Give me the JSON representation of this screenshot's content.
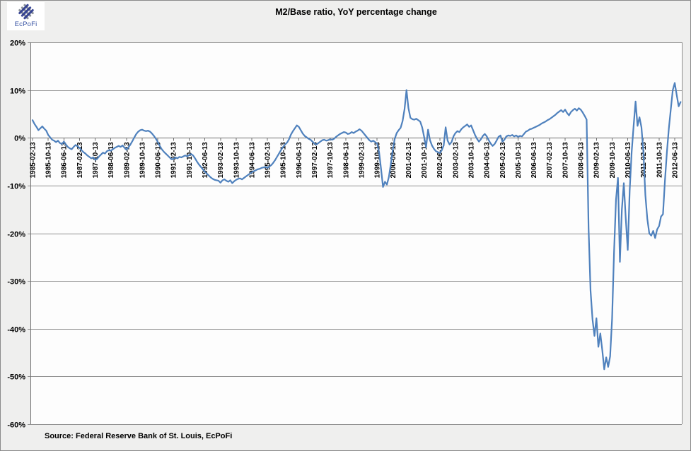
{
  "header": {
    "title": "M2/Base ratio, YoY percentage change"
  },
  "logo": {
    "text": "EcPoFi"
  },
  "footer": {
    "source": "Source: Federal Reserve Bank of St. Louis, EcPoFi"
  },
  "colors": {
    "line": "#4f81bd",
    "gridline": "#8e8e8e",
    "axis": "#6f6f6f",
    "background": "#efefee",
    "plot_background": "#fdfdfd",
    "text": "#000000",
    "logo_blue": "#2c3b8e",
    "logo_gray": "#8f959c"
  },
  "chart_data": {
    "type": "line",
    "title": "M2/Base ratio, YoY percentage change",
    "xlabel": "",
    "ylabel": "",
    "ylim": [
      -60,
      20
    ],
    "y_tick_step": 10,
    "y_tick_labels": [
      "20%",
      "10%",
      "0%",
      "-10%",
      "-20%",
      "-30%",
      "-40%",
      "-50%",
      "-60%"
    ],
    "grid": "horizontal",
    "legend": "none",
    "x_start_month": "1985-02",
    "x_end_month": "2012-09",
    "x_tick_every_months": 8,
    "x_tick_labels": [
      "1985-02-13",
      "1985-10-13",
      "1986-06-13",
      "1987-02-13",
      "1987-10-13",
      "1988-06-13",
      "1989-02-13",
      "1989-10-13",
      "1990-06-13",
      "1991-02-13",
      "1991-10-13",
      "1992-06-13",
      "1993-02-13",
      "1993-10-13",
      "1994-06-13",
      "1995-02-13",
      "1995-10-13",
      "1996-06-13",
      "1997-02-13",
      "1997-10-13",
      "1998-06-13",
      "1999-02-13",
      "1999-10-13",
      "2000-06-13",
      "2001-02-13",
      "2001-10-13",
      "2002-06-13",
      "2003-02-13",
      "2003-10-13",
      "2004-06-13",
      "2005-02-13",
      "2005-10-13",
      "2006-06-13",
      "2007-02-13",
      "2007-10-13",
      "2008-06-13",
      "2009-02-13",
      "2009-10-13",
      "2010-06-13",
      "2011-02-13",
      "2011-10-13",
      "2012-06-13"
    ],
    "series": [
      {
        "name": "M2/Base ratio, YoY percentage change",
        "values": [
          3.7,
          2.9,
          2.3,
          1.6,
          2.0,
          2.4,
          1.9,
          1.5,
          0.6,
          0.1,
          -0.4,
          -0.6,
          -0.9,
          -0.6,
          -1.1,
          -1.3,
          -0.8,
          -1.4,
          -1.9,
          -2.2,
          -2.4,
          -1.9,
          -1.5,
          -1.8,
          -2.1,
          -2.6,
          -3.0,
          -3.3,
          -3.7,
          -4.0,
          -4.3,
          -4.1,
          -4.6,
          -4.4,
          -3.9,
          -3.5,
          -3.1,
          -3.3,
          -2.8,
          -2.6,
          -2.7,
          -2.4,
          -2.1,
          -1.9,
          -1.7,
          -1.9,
          -1.6,
          -2.1,
          -2.5,
          -2.0,
          -1.4,
          -0.7,
          0.1,
          0.8,
          1.3,
          1.6,
          1.7,
          1.5,
          1.4,
          1.5,
          1.3,
          0.9,
          0.4,
          -0.2,
          -0.9,
          -1.7,
          -2.4,
          -2.9,
          -3.3,
          -3.7,
          -4.1,
          -4.5,
          -4.4,
          -4.1,
          -4.3,
          -4.0,
          -4.1,
          -3.9,
          -3.7,
          -3.9,
          -3.6,
          -3.4,
          -3.7,
          -4.3,
          -5.0,
          -5.6,
          -6.1,
          -6.6,
          -7.1,
          -7.5,
          -7.9,
          -8.3,
          -8.6,
          -8.8,
          -8.9,
          -9.0,
          -9.4,
          -8.9,
          -8.7,
          -9.0,
          -9.2,
          -8.9,
          -9.5,
          -9.1,
          -8.8,
          -8.6,
          -8.5,
          -8.7,
          -8.4,
          -8.1,
          -7.8,
          -7.5,
          -7.2,
          -7.0,
          -6.8,
          -6.6,
          -6.5,
          -6.3,
          -6.2,
          -6.1,
          -6.3,
          -6.0,
          -5.7,
          -5.2,
          -4.6,
          -3.9,
          -3.2,
          -2.5,
          -1.9,
          -1.4,
          -1.0,
          -0.3,
          0.7,
          1.4,
          2.0,
          2.6,
          2.3,
          1.6,
          0.9,
          0.4,
          0.1,
          -0.2,
          -0.4,
          -0.8,
          -1.2,
          -1.4,
          -1.1,
          -0.8,
          -0.5,
          -0.4,
          -0.6,
          -0.5,
          -0.3,
          -0.4,
          -0.2,
          0.2,
          0.5,
          0.8,
          1.0,
          1.2,
          1.1,
          0.8,
          0.9,
          1.2,
          1.0,
          1.3,
          1.5,
          1.8,
          1.5,
          1.0,
          0.5,
          0.0,
          -0.5,
          -0.8,
          -0.6,
          -0.9,
          -1.2,
          -3.0,
          -6.5,
          -10.3,
          -9.2,
          -9.8,
          -8.2,
          -5.5,
          -2.5,
          -0.2,
          1.0,
          1.6,
          2.1,
          3.5,
          6.0,
          10.0,
          6.2,
          4.2,
          3.9,
          3.8,
          4.0,
          3.7,
          3.4,
          2.2,
          0.2,
          -2.0,
          1.7,
          -0.5,
          -1.6,
          -2.3,
          -2.8,
          -3.0,
          -3.2,
          -2.6,
          -1.6,
          2.2,
          -0.6,
          -1.4,
          -0.9,
          0.3,
          1.0,
          1.4,
          1.2,
          1.8,
          2.2,
          2.5,
          2.8,
          2.3,
          2.6,
          1.6,
          0.6,
          -0.2,
          -0.8,
          -0.3,
          0.4,
          0.8,
          0.3,
          -0.5,
          -1.2,
          -1.7,
          -1.3,
          -0.6,
          0.2,
          0.5,
          -0.8,
          -0.4,
          0.3,
          0.5,
          0.4,
          0.6,
          0.3,
          0.5,
          0.2,
          0.4,
          0.3,
          0.8,
          1.3,
          1.5,
          1.8,
          1.9,
          2.1,
          2.3,
          2.5,
          2.7,
          3.0,
          3.2,
          3.4,
          3.7,
          3.9,
          4.2,
          4.5,
          4.8,
          5.2,
          5.5,
          5.8,
          5.4,
          5.9,
          5.2,
          4.7,
          5.4,
          5.8,
          6.1,
          5.7,
          6.2,
          5.9,
          5.3,
          4.6,
          3.8,
          -19.0,
          -32.0,
          -38.0,
          -41.5,
          -37.8,
          -43.8,
          -41.0,
          -44.5,
          -48.5,
          -46.0,
          -48.0,
          -45.8,
          -38.0,
          -24.0,
          -13.0,
          -8.4,
          -26.0,
          -15.0,
          -9.5,
          -17.0,
          -23.5,
          -11.0,
          -3.0,
          2.5,
          7.6,
          2.5,
          4.3,
          2.2,
          -3.0,
          -12.0,
          -17.0,
          -20.0,
          -20.5,
          -19.5,
          -21.0,
          -19.2,
          -18.5,
          -16.5,
          -16.0,
          -9.0,
          -3.0,
          2.0,
          6.0,
          10.0,
          11.5,
          9.0,
          6.6,
          7.5
        ]
      }
    ]
  }
}
